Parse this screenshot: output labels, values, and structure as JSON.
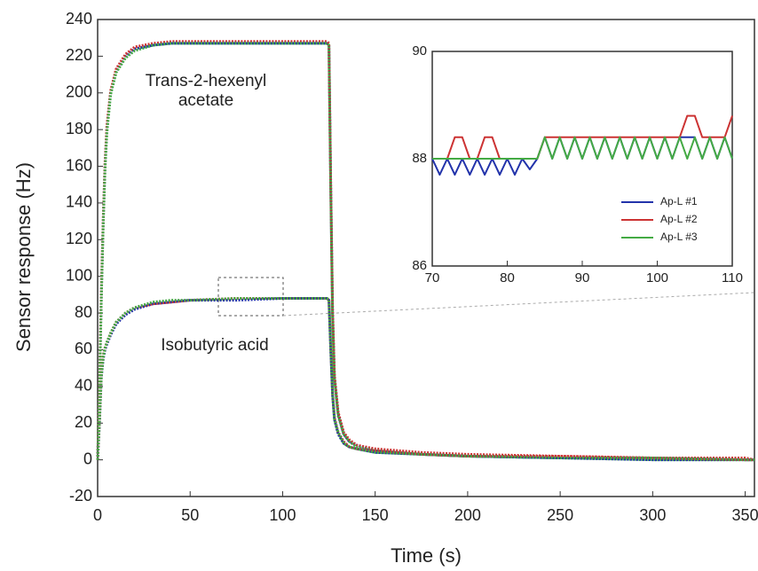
{
  "chart_data": [
    {
      "type": "line",
      "xlabel": "Time (s)",
      "ylabel": "Sensor response (Hz)",
      "xlim": [
        0,
        355
      ],
      "ylim": [
        -20,
        240
      ],
      "xticks": [
        0,
        50,
        100,
        150,
        200,
        250,
        300,
        350
      ],
      "yticks": [
        -20,
        0,
        20,
        40,
        60,
        80,
        100,
        120,
        140,
        160,
        180,
        200,
        220,
        240
      ],
      "x": [
        0,
        1,
        2,
        3,
        4,
        5,
        7,
        10,
        15,
        20,
        30,
        40,
        50,
        75,
        100,
        124,
        125,
        126,
        127,
        128,
        130,
        133,
        136,
        140,
        150,
        175,
        200,
        250,
        300,
        350,
        355
      ],
      "groups": [
        {
          "label": [
            "Trans-2-hexenyl",
            "acetate"
          ],
          "series": [
            {
              "color": "#2233aa",
              "values": [
                0,
                40,
                90,
                130,
                160,
                180,
                200,
                212,
                220,
                224,
                226,
                227,
                227,
                227,
                227,
                227,
                226,
                150,
                80,
                45,
                25,
                14,
                10,
                8,
                5,
                3,
                2,
                1,
                1,
                0,
                0
              ]
            },
            {
              "color": "#cc3333",
              "values": [
                0,
                42,
                92,
                132,
                162,
                182,
                201,
                213,
                221,
                225,
                227,
                228,
                228,
                228,
                228,
                228,
                227,
                152,
                82,
                46,
                26,
                15,
                11,
                8,
                6,
                4,
                3,
                2,
                1,
                1,
                0
              ]
            },
            {
              "color": "#44aa44",
              "values": [
                0,
                38,
                88,
                128,
                158,
                178,
                199,
                211,
                219,
                223,
                226,
                227,
                227,
                227,
                227,
                227,
                226,
                148,
                78,
                44,
                24,
                14,
                10,
                7,
                5,
                3,
                2,
                1,
                0,
                0,
                0
              ]
            }
          ]
        },
        {
          "label": [
            "Isobutyric acid"
          ],
          "series": [
            {
              "color": "#2233aa",
              "values": [
                0,
                20,
                45,
                55,
                60,
                63,
                68,
                74,
                79,
                82,
                85,
                86,
                87,
                87,
                88,
                88,
                87,
                60,
                35,
                22,
                14,
                9,
                7,
                6,
                4,
                3,
                2,
                1,
                0,
                0,
                0
              ]
            },
            {
              "color": "#cc3333",
              "values": [
                0,
                22,
                47,
                57,
                61,
                64,
                69,
                75,
                80,
                83,
                85,
                86,
                87,
                88,
                88,
                88,
                87,
                62,
                36,
                23,
                15,
                10,
                7,
                6,
                5,
                3,
                2,
                2,
                1,
                0,
                0
              ]
            },
            {
              "color": "#44aa44",
              "values": [
                0,
                21,
                46,
                56,
                61,
                64,
                69,
                75,
                80,
                83,
                86,
                87,
                87,
                88,
                88,
                88,
                87,
                61,
                36,
                22,
                15,
                9,
                7,
                6,
                4,
                3,
                2,
                1,
                1,
                0,
                0
              ]
            }
          ]
        }
      ]
    },
    {
      "type": "line",
      "xlim": [
        70,
        110
      ],
      "ylim": [
        86,
        90
      ],
      "xticks": [
        70,
        80,
        90,
        100,
        110
      ],
      "yticks": [
        86,
        88,
        90
      ],
      "legend": "lower right",
      "x": [
        70,
        71,
        72,
        73,
        74,
        75,
        76,
        77,
        78,
        79,
        80,
        81,
        82,
        83,
        84,
        85,
        86,
        87,
        88,
        89,
        90,
        91,
        92,
        93,
        94,
        95,
        96,
        97,
        98,
        99,
        100,
        101,
        102,
        103,
        104,
        105,
        106,
        107,
        108,
        109,
        110
      ],
      "series": [
        {
          "name": "Ap-L #1",
          "color": "#2233aa",
          "values": [
            88,
            87.7,
            88,
            87.7,
            88,
            87.7,
            88,
            87.7,
            88,
            87.7,
            88,
            87.7,
            88,
            87.8,
            88,
            88.4,
            88,
            88.4,
            88,
            88.4,
            88,
            88.4,
            88,
            88.4,
            88,
            88.4,
            88,
            88.4,
            88,
            88.4,
            88,
            88.4,
            88,
            88.4,
            88.4,
            88.4,
            88,
            88.4,
            88,
            88.4,
            88
          ]
        },
        {
          "name": "Ap-L #2",
          "color": "#cc3333",
          "values": [
            88,
            88,
            88,
            88.4,
            88.4,
            88,
            88,
            88.4,
            88.4,
            88,
            88,
            88,
            88,
            88,
            88,
            88.4,
            88.4,
            88.4,
            88.4,
            88.4,
            88.4,
            88.4,
            88.4,
            88.4,
            88.4,
            88.4,
            88.4,
            88.4,
            88.4,
            88.4,
            88.4,
            88.4,
            88.4,
            88.4,
            88.8,
            88.8,
            88.4,
            88.4,
            88.4,
            88.4,
            88.8
          ]
        },
        {
          "name": "Ap-L #3",
          "color": "#44aa44",
          "values": [
            88,
            88,
            88,
            88,
            88,
            88,
            88,
            88,
            88,
            88,
            88,
            88,
            88,
            88,
            88,
            88.4,
            88,
            88.4,
            88,
            88.4,
            88,
            88.4,
            88,
            88.4,
            88,
            88.4,
            88,
            88.4,
            88,
            88.4,
            88,
            88.4,
            88,
            88.4,
            88,
            88.4,
            88,
            88.4,
            88,
            88.4,
            88
          ]
        }
      ]
    }
  ]
}
